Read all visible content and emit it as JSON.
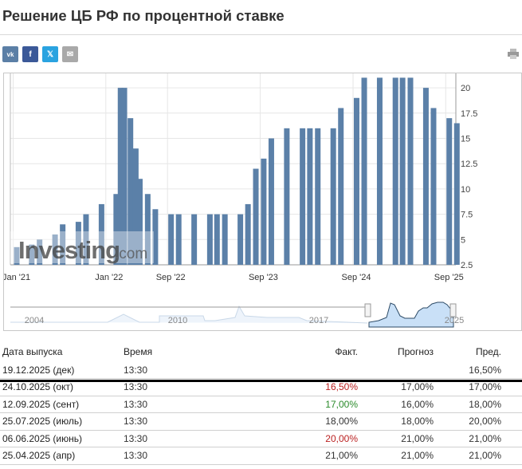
{
  "page": {
    "title": "Решение ЦБ РФ по процентной ставке"
  },
  "share": [
    {
      "label": "vk",
      "icon": "vk-icon",
      "color": "#5b7fa6"
    },
    {
      "label": "f",
      "icon": "facebook-icon",
      "color": "#3b5998"
    },
    {
      "label": "𝕏",
      "icon": "x-twitter-icon",
      "color": "#2aa3e0"
    },
    {
      "label": "✉",
      "icon": "email-icon",
      "color": "#a9a9a9"
    }
  ],
  "watermark": "Investing.com",
  "chart_data": {
    "type": "bar",
    "x": [
      "2021-01",
      "2021-03",
      "2021-04",
      "2021-06",
      "2021-07",
      "2021-09",
      "2021-10",
      "2021-12",
      "2022-02-11",
      "2022-02-28",
      "2022-03",
      "2022-04-08",
      "2022-04-29",
      "2022-05",
      "2022-06",
      "2022-07",
      "2022-09",
      "2022-10",
      "2022-12",
      "2023-02",
      "2023-03",
      "2023-04",
      "2023-06",
      "2023-07",
      "2023-08",
      "2023-09",
      "2023-10",
      "2023-12",
      "2024-02",
      "2024-03",
      "2024-04",
      "2024-06",
      "2024-07",
      "2024-09",
      "2024-10",
      "2024-12",
      "2025-02",
      "2025-03",
      "2025-04",
      "2025-06",
      "2025-07",
      "2025-09",
      "2025-10"
    ],
    "values": [
      4.25,
      4.5,
      5,
      5.5,
      6.5,
      6.75,
      7.5,
      8.5,
      9.5,
      20,
      20,
      17,
      14,
      11,
      9.5,
      8,
      7.5,
      7.5,
      7.5,
      7.5,
      7.5,
      7.5,
      7.5,
      8.5,
      12,
      13,
      15,
      16,
      16,
      16,
      16,
      16,
      18,
      19,
      21,
      21,
      21,
      21,
      21,
      20,
      18,
      17,
      16.5
    ],
    "x_ticks": [
      "Jan '21",
      "Jan '22",
      "Sep '22",
      "Sep '23",
      "Sep '24",
      "Sep '25"
    ],
    "y_ticks": [
      "2.5",
      "5",
      "7.5",
      "10",
      "12.5",
      "15",
      "17.5",
      "20"
    ],
    "ylim": [
      2.5,
      21
    ],
    "grid": true,
    "bar_color": "#5b80a8",
    "navigator": {
      "labels": [
        "2004",
        "2010",
        "2017",
        "2025"
      ]
    }
  },
  "table": {
    "headers": [
      "Дата выпуска",
      "Время",
      "Факт.",
      "Прогноз",
      "Пред."
    ],
    "rows": [
      {
        "date": "19.12.2025 (дек)",
        "time": "13:30",
        "actual": "",
        "forecast": "",
        "previous": "16,50%",
        "status": ""
      },
      {
        "date": "24.10.2025 (окт)",
        "time": "13:30",
        "actual": "16,50%",
        "forecast": "17,00%",
        "previous": "17,00%",
        "status": "up"
      },
      {
        "date": "12.09.2025 (сент)",
        "time": "13:30",
        "actual": "17,00%",
        "forecast": "16,00%",
        "previous": "18,00%",
        "status": "down"
      },
      {
        "date": "25.07.2025 (июль)",
        "time": "13:30",
        "actual": "18,00%",
        "forecast": "18,00%",
        "previous": "20,00%",
        "status": ""
      },
      {
        "date": "06.06.2025 (июнь)",
        "time": "13:30",
        "actual": "20,00%",
        "forecast": "21,00%",
        "previous": "21,00%",
        "status": "up"
      },
      {
        "date": "25.04.2025 (апр)",
        "time": "13:30",
        "actual": "21,00%",
        "forecast": "21,00%",
        "previous": "21,00%",
        "status": ""
      }
    ]
  }
}
